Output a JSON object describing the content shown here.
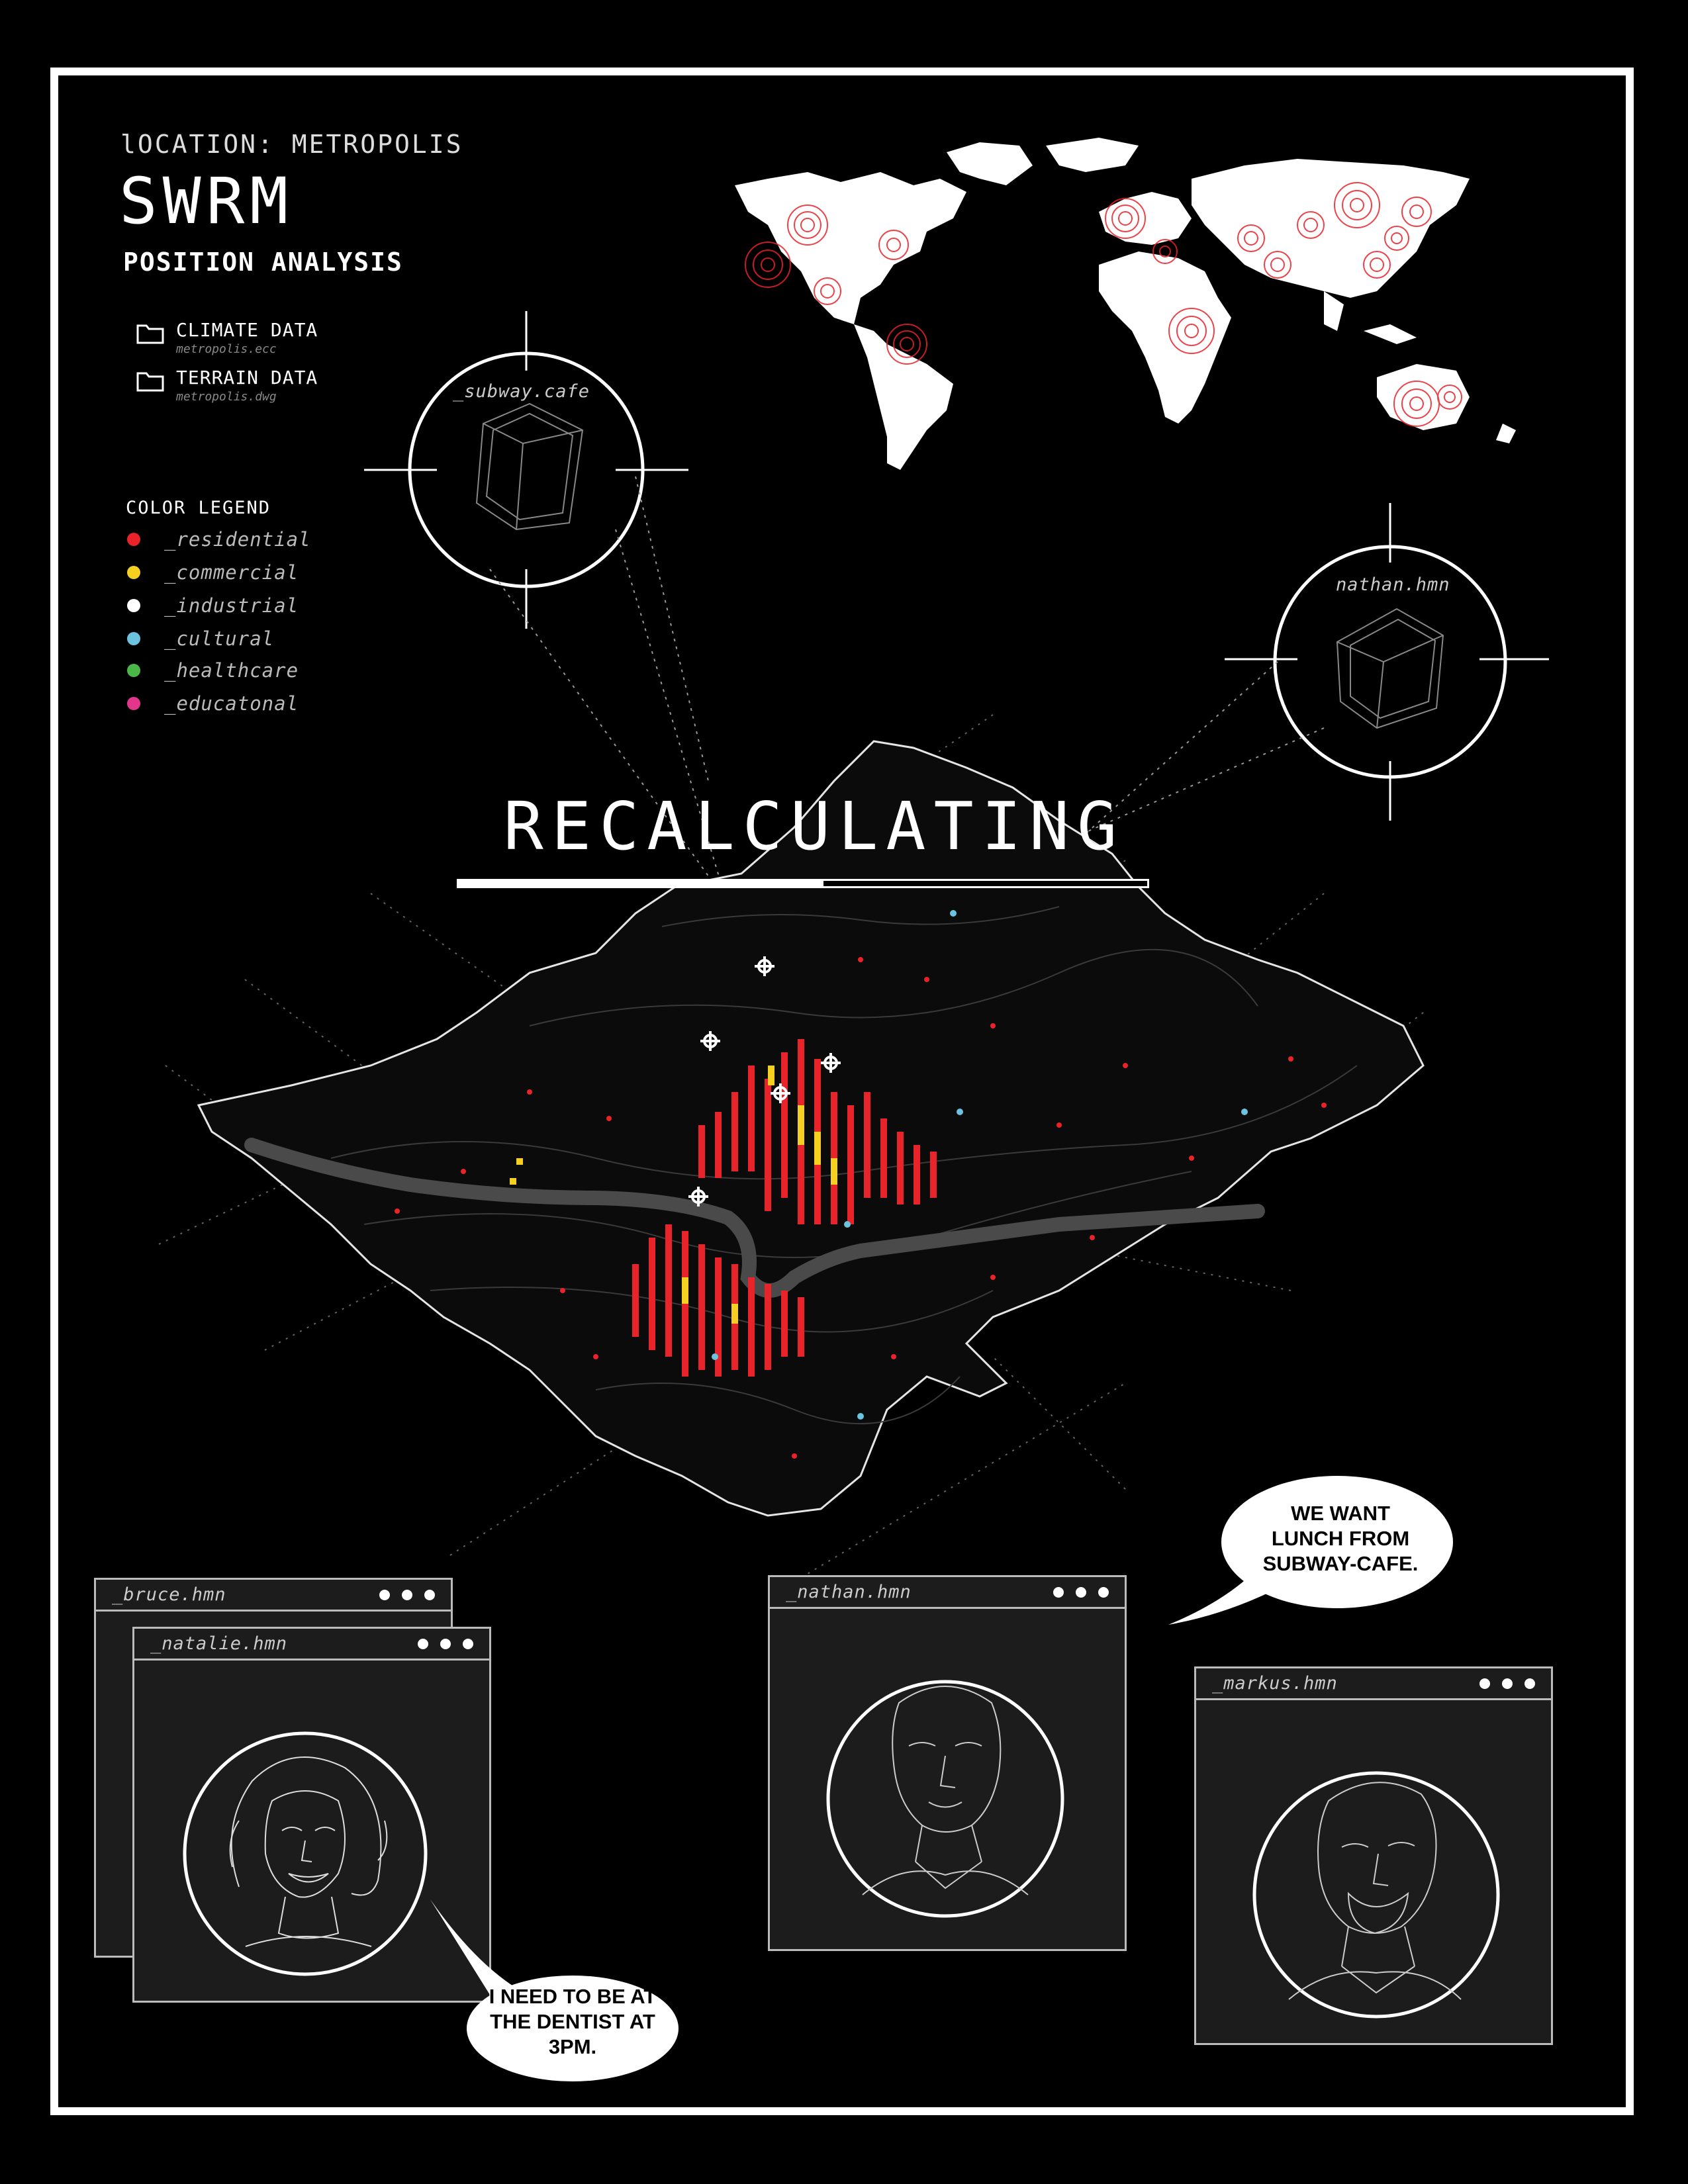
{
  "header": {
    "location": "lOCATION: METROPOLIS",
    "title": "SWRM",
    "subtitle": "POSITION ANALYSIS"
  },
  "files": [
    {
      "name": "CLIMATE DATA",
      "path": "metropolis.ecc",
      "icon": "folder-icon"
    },
    {
      "name": "TERRAIN DATA",
      "path": "metropolis.dwg",
      "icon": "folder-icon"
    }
  ],
  "legend": {
    "title": "COLOR LEGEND",
    "items": [
      {
        "label": "_residential",
        "color": "#e8232a"
      },
      {
        "label": "_commercial",
        "color": "#f5d020"
      },
      {
        "label": "_industrial",
        "color": "#ffffff"
      },
      {
        "label": "_cultural",
        "color": "#6cc3df"
      },
      {
        "label": "_healthcare",
        "color": "#4bb748"
      },
      {
        "label": "_educatonal",
        "color": "#e2368a"
      }
    ]
  },
  "targets": [
    {
      "label": "_subway.cafe"
    },
    {
      "label": "nathan.hmn"
    }
  ],
  "status": {
    "text": "RECALCULATING",
    "progress": 0.53
  },
  "windows": [
    {
      "name": "_bruce.hmn"
    },
    {
      "name": "_natalie.hmn"
    },
    {
      "name": "_nathan.hmn"
    },
    {
      "name": "_markus.hmn"
    }
  ],
  "bubbles": {
    "natalie": [
      "I NEED TO BE AT",
      "THE DENTIST AT",
      "3PM."
    ],
    "nathan": [
      "WE WANT",
      "LUNCH FROM",
      "SUBWAY-CAFE."
    ]
  },
  "colors": {
    "background": "#000000",
    "foreground": "#ffffff",
    "accent": "#e8232a",
    "window": "#1c1c1c"
  }
}
